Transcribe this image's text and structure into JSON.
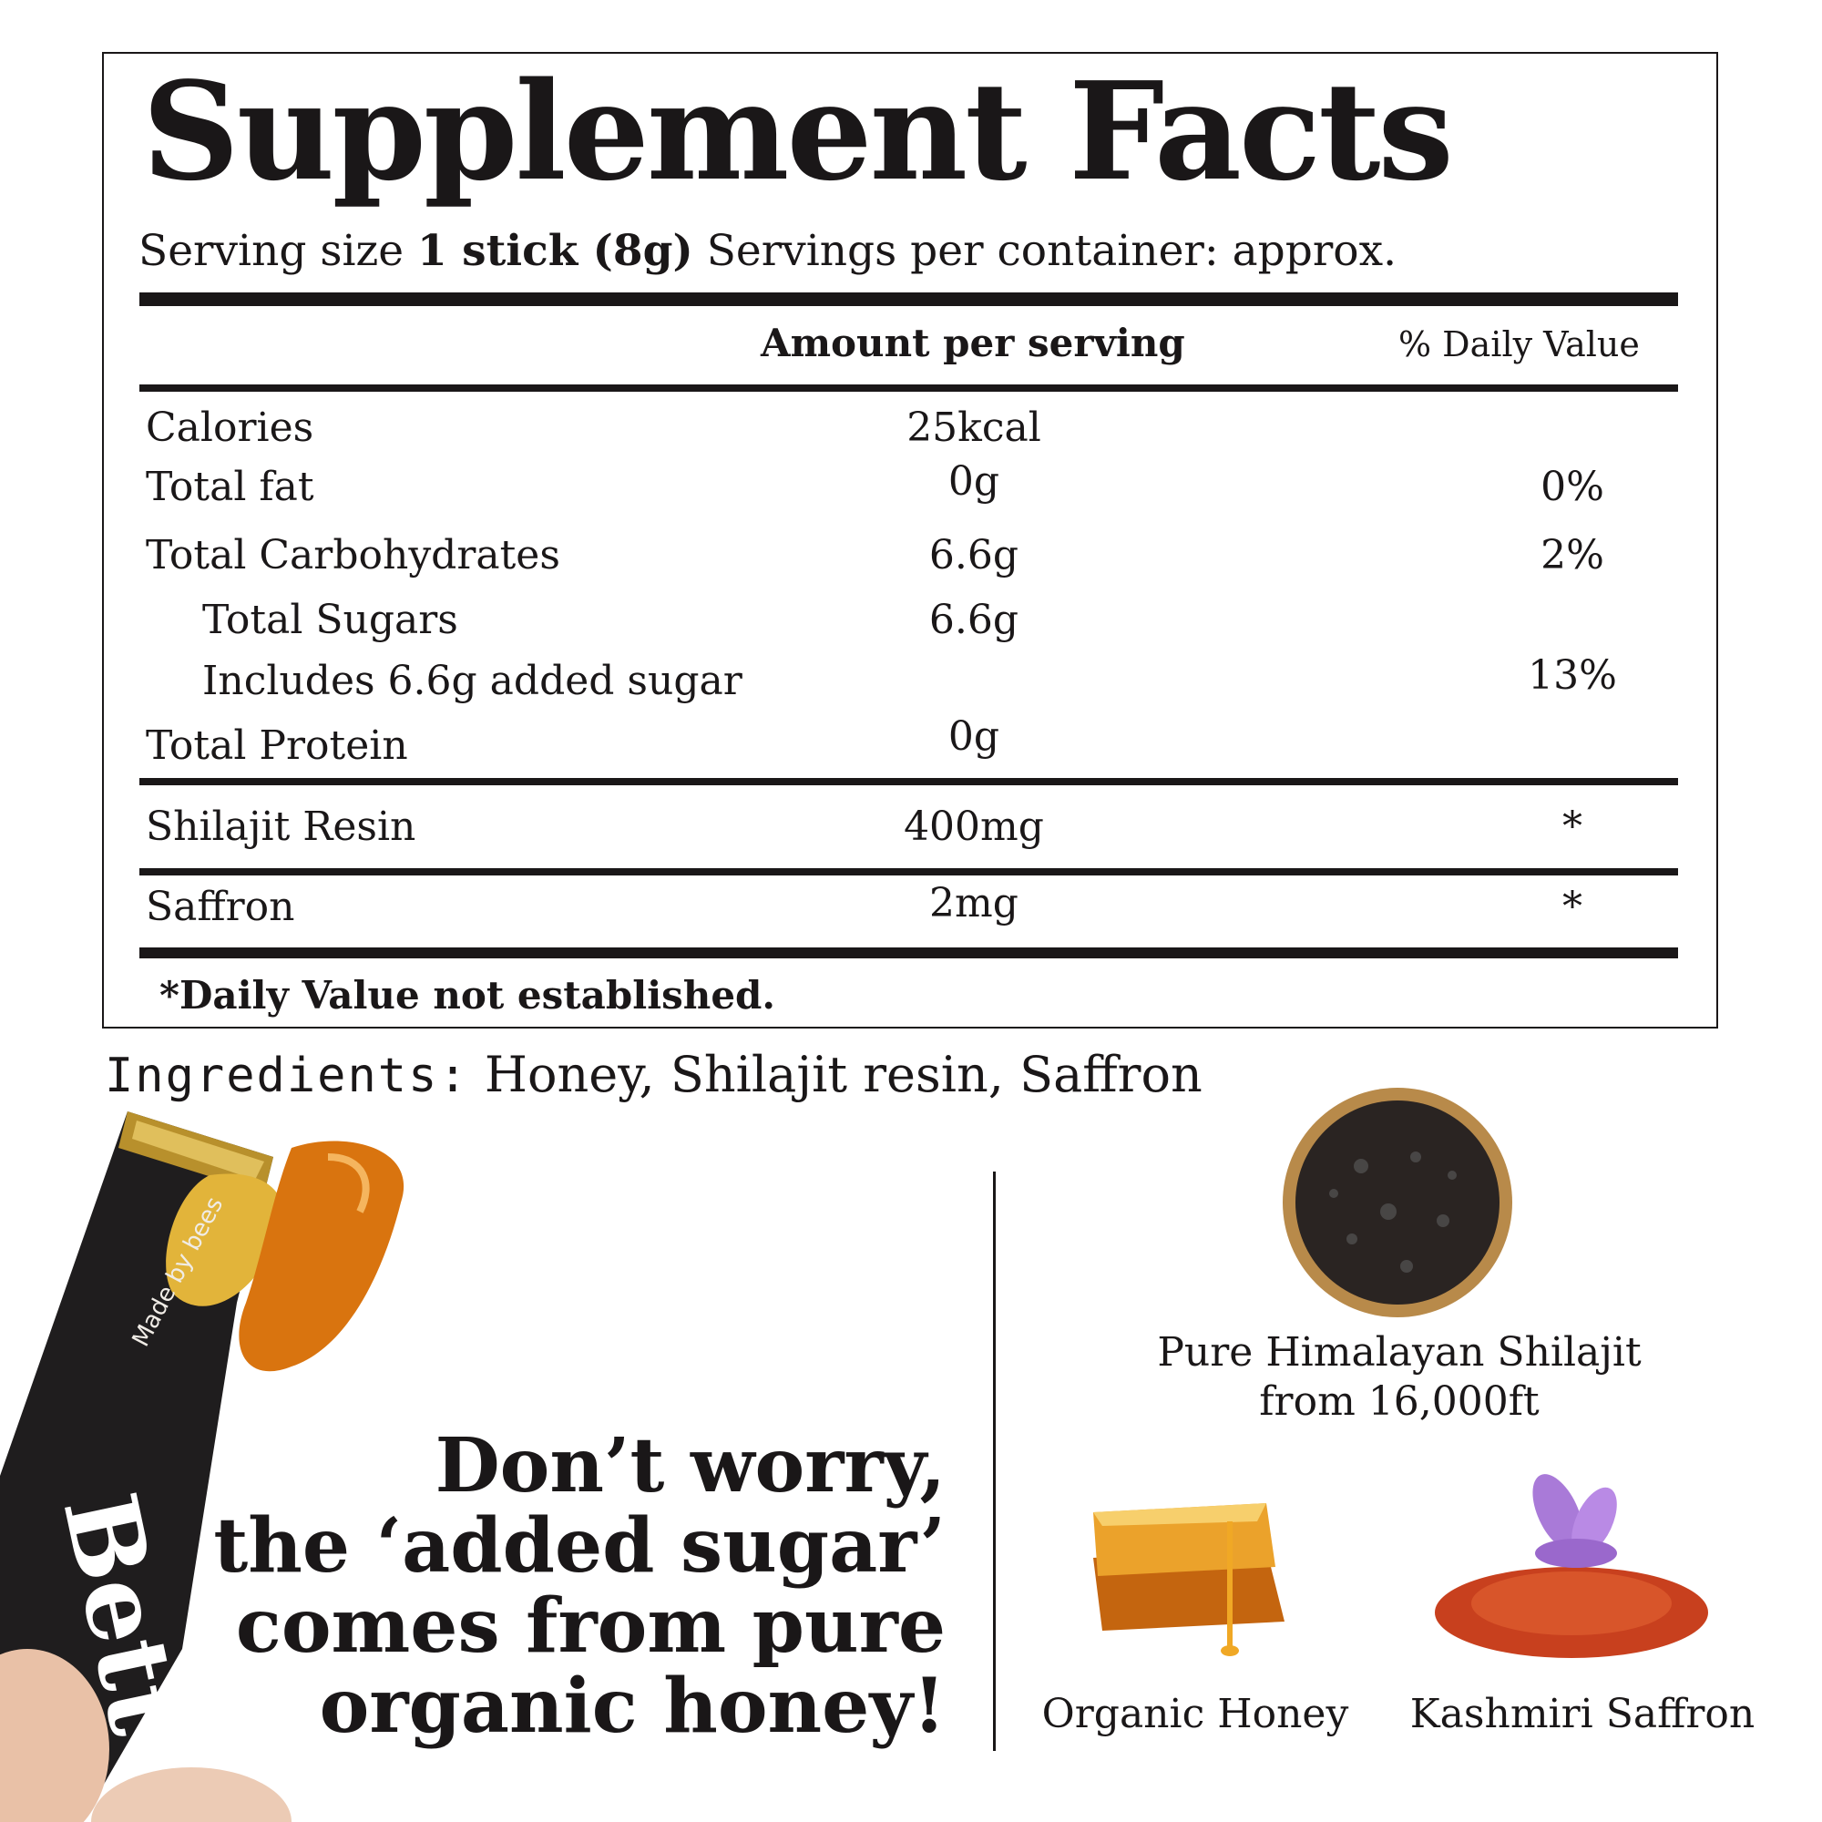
{
  "facts": {
    "title": "Supplement Facts",
    "serving_size_label": "Serving size",
    "serving_size_value": "1 stick (8g)",
    "servings_per_container": "Servings per container: approx.",
    "header_amount": "Amount per serving",
    "header_dv": "% Daily Value",
    "rows": [
      {
        "label": "Calories",
        "amount": "25kcal",
        "dv": ""
      },
      {
        "label": "Total fat",
        "amount": "0g",
        "dv": "0%"
      },
      {
        "label": "Total Carbohydrates",
        "amount": "6.6g",
        "dv": "2%"
      },
      {
        "label": "Total Sugars",
        "amount": "6.6g",
        "dv": ""
      },
      {
        "label": "Includes 6.6g added sugar",
        "amount": "",
        "dv": "13%"
      },
      {
        "label": "Total Protein",
        "amount": "0g",
        "dv": ""
      },
      {
        "label": "Shilajit Resin",
        "amount": "400mg",
        "dv": "*"
      },
      {
        "label": "Saffron",
        "amount": "2mg",
        "dv": "*"
      }
    ],
    "footnote": "*Daily Value not established."
  },
  "ingredients": {
    "label": "Ingredients:",
    "value": "Honey, Shilajit resin, Saffron"
  },
  "headline": [
    "Don’t worry,",
    "the ‘added sugar’",
    "comes from pure",
    "organic honey!"
  ],
  "product": {
    "brand_text": "Bett",
    "pack_text": "Made by bees"
  },
  "features": [
    {
      "caption_line1": "Pure Himalayan Shilajit",
      "caption_line2": "from 16,000ft"
    },
    {
      "caption_line1": "Organic Honey"
    },
    {
      "caption_line1": "Kashmiri Saffron"
    }
  ],
  "colors": {
    "text": "#1a1718",
    "honey": "#d9740f",
    "gold": "#c9a23a",
    "saffron": "#c8401e",
    "flower": "#a97ad8"
  }
}
